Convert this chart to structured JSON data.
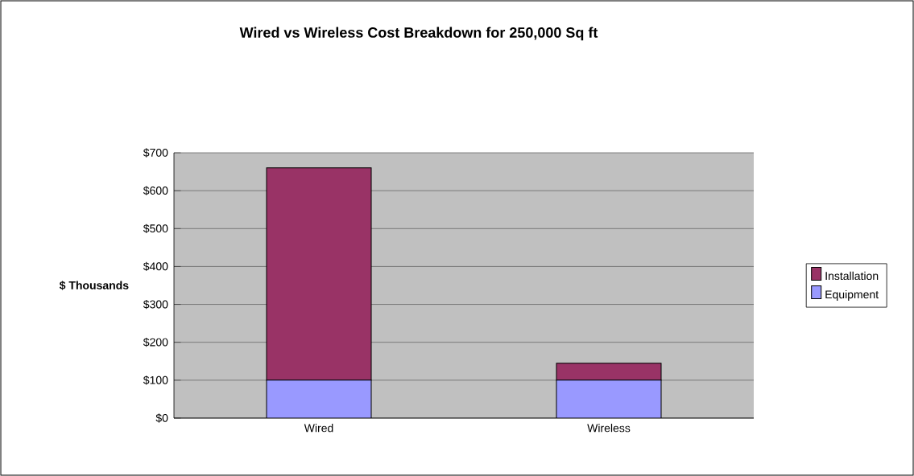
{
  "chart_data": {
    "type": "bar",
    "stacked": true,
    "title": "Wired vs Wireless Cost Breakdown for 250,000 Sq ft",
    "ylabel": "$ Thousands",
    "categories": [
      "Wired",
      "Wireless"
    ],
    "series": [
      {
        "name": "Equipment",
        "color": "#9999ff",
        "values": [
          100,
          100
        ]
      },
      {
        "name": "Installation",
        "color": "#993366",
        "values": [
          560,
          45
        ]
      }
    ],
    "ylim": [
      0,
      700
    ],
    "yticks": [
      {
        "value": 0,
        "label": "$0"
      },
      {
        "value": 100,
        "label": "$100"
      },
      {
        "value": 200,
        "label": "$200"
      },
      {
        "value": 300,
        "label": "$300"
      },
      {
        "value": 400,
        "label": "$400"
      },
      {
        "value": 500,
        "label": "$500"
      },
      {
        "value": 600,
        "label": "$600"
      },
      {
        "value": 700,
        "label": "$700"
      }
    ],
    "grid": "y",
    "legend": "right"
  }
}
